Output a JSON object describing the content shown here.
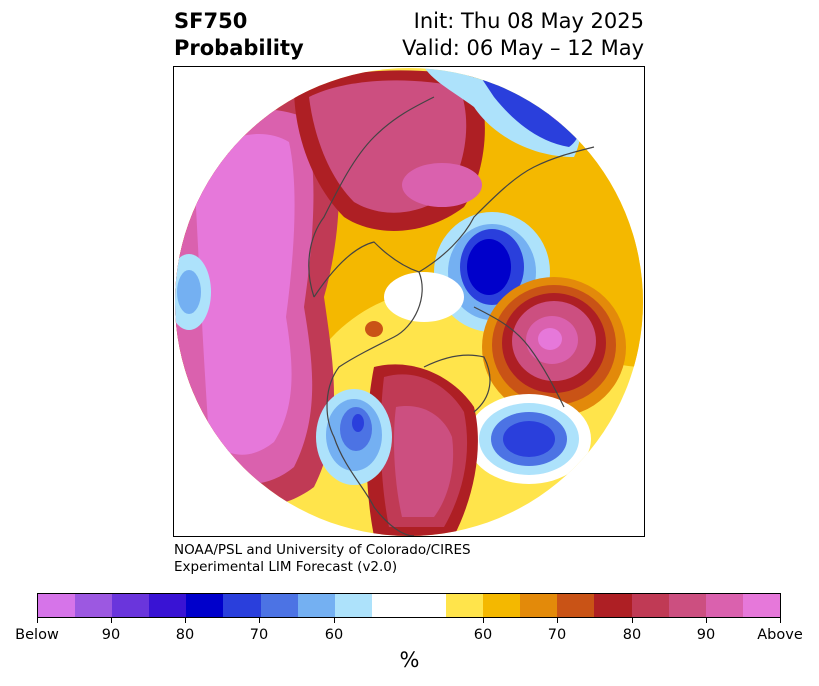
{
  "title": {
    "line1": "SF750",
    "line2": "Probability",
    "init": "Init: Thu 08 May 2025",
    "valid": "Valid: 06 May – 12 May"
  },
  "credit": {
    "line1": "NOAA/PSL and University of Colorado/CIRES",
    "line2": "Experimental LIM Forecast (v2.0)"
  },
  "colorbar": {
    "label": "%",
    "colors": [
      "#d674e9",
      "#9c58e1",
      "#6a35dc",
      "#3913d4",
      "#0000cb",
      "#2a3fdc",
      "#4c73e4",
      "#74b0f2",
      "#ade2fb",
      "#ffffff",
      "#ffe44b",
      "#f4b800",
      "#e38a0a",
      "#c95316",
      "#ae1f24",
      "#c03a55",
      "#cc4f80",
      "#da61ae",
      "#e678da"
    ],
    "tick_labels": [
      "Below",
      "90",
      "80",
      "70",
      "60",
      "60",
      "70",
      "80",
      "90",
      "Above"
    ]
  },
  "map": {
    "projection": "north polar stereographic",
    "anomalies": [
      {
        "region": "North Pacific",
        "sign": "Above",
        "level": "Above"
      },
      {
        "region": "Eastern Siberia",
        "sign": "Above",
        "level": "90"
      },
      {
        "region": "North Atlantic",
        "sign": "Above",
        "level": "Above"
      },
      {
        "region": "Eastern North America",
        "sign": "Above",
        "level": "90"
      },
      {
        "region": "Barents-Kara Sea",
        "sign": "Below",
        "level": "80"
      },
      {
        "region": "Western United States",
        "sign": "Below",
        "level": "70"
      },
      {
        "region": "Central Atlantic",
        "sign": "Below",
        "level": "70"
      },
      {
        "region": "Far East Asia",
        "sign": "Below",
        "level": "90"
      }
    ]
  }
}
